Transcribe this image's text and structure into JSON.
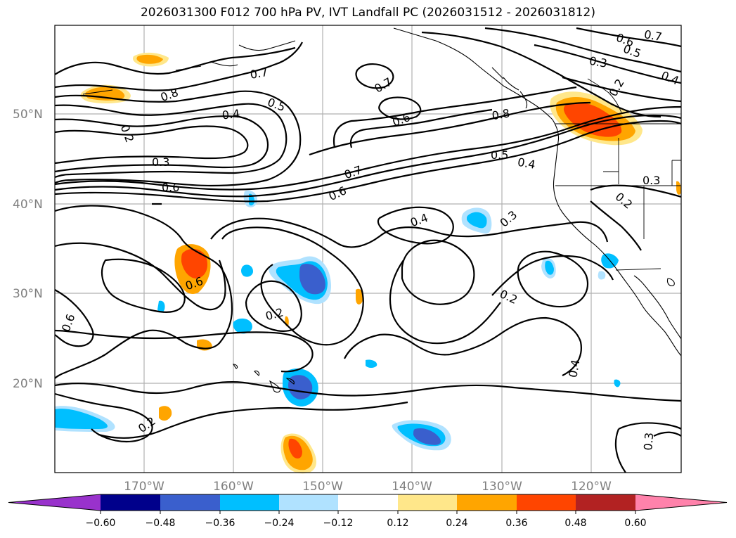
{
  "title": "2026031300 F012 700 hPa PV, IVT Landfall PC (2026031512 - 2026031812)",
  "lat_labels": [
    "50°N",
    "40°N",
    "30°N",
    "20°N"
  ],
  "lon_labels": [
    "170°W",
    "160°W",
    "150°W",
    "140°W",
    "130°W",
    "120°W"
  ],
  "colorbar": {
    "ticks": [
      "−0.60",
      "−0.48",
      "−0.36",
      "−0.24",
      "−0.12",
      "0.12",
      "0.24",
      "0.36",
      "0.48",
      "0.60"
    ],
    "colors": [
      "#9932cc",
      "#00008b",
      "#3a5fcd",
      "#00bfff",
      "#b0e2ff",
      "#ffffff",
      "#ffe78a",
      "#ffa500",
      "#ff4500",
      "#b22222",
      "#ff82ab"
    ]
  },
  "contour_labels": [
    "0.8",
    "0.7",
    "0.5",
    "0.4",
    "0.2",
    "0.3",
    "0.6",
    "0.7",
    "0.6",
    "0.8",
    "0.6",
    "0.7",
    "0.5",
    "0.4",
    "0.6",
    "0.7",
    "0.5",
    "0.3",
    "0.4",
    "0.2",
    "0.3",
    "0.4",
    "0.2",
    "0.3",
    "0.6",
    "0.2",
    "0.6",
    "0.2",
    "0.4",
    "0.3",
    "0.6"
  ],
  "map_colors": {
    "ocean": "#ffffff",
    "positive_light": "#ffe78a",
    "positive_mid": "#ffa500",
    "positive_strong": "#ff4500",
    "negative_light": "#b0e2ff",
    "negative_mid": "#00bfff",
    "negative_strong": "#3a5fcd"
  }
}
